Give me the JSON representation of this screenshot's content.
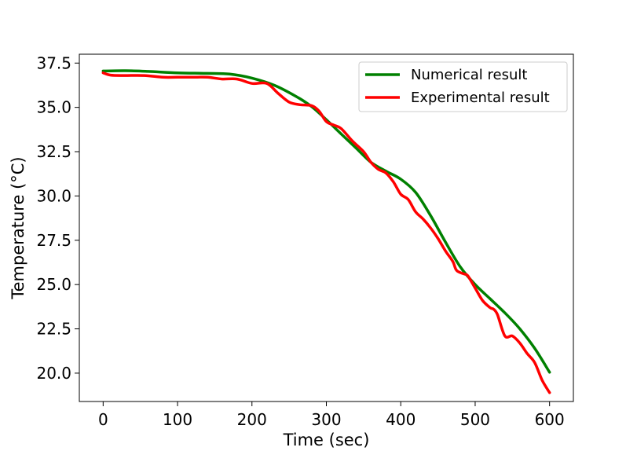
{
  "chart_data": {
    "type": "line",
    "title": "",
    "xlabel": "Time (sec)",
    "ylabel": "Temperature (°C)",
    "xlim": [
      -32,
      632
    ],
    "ylim": [
      18.4,
      38.0
    ],
    "xticks": [
      0,
      100,
      200,
      300,
      400,
      500,
      600
    ],
    "xtick_labels": [
      "0",
      "100",
      "200",
      "300",
      "400",
      "500",
      "600"
    ],
    "yticks": [
      20.0,
      22.5,
      25.0,
      27.5,
      30.0,
      32.5,
      35.0,
      37.5
    ],
    "ytick_labels": [
      "20.0",
      "22.5",
      "25.0",
      "27.5",
      "30.0",
      "32.5",
      "35.0",
      "37.5"
    ],
    "grid": false,
    "legend_position": "upper right",
    "series": [
      {
        "name": "Numerical result",
        "color": "#008000",
        "x": [
          0,
          30,
          60,
          100,
          140,
          170,
          200,
          230,
          260,
          280,
          300,
          320,
          340,
          360,
          380,
          400,
          420,
          440,
          460,
          480,
          500,
          520,
          540,
          560,
          580,
          600
        ],
        "y": [
          37.05,
          37.07,
          37.03,
          36.95,
          36.92,
          36.88,
          36.65,
          36.25,
          35.6,
          35.05,
          34.3,
          33.5,
          32.7,
          31.9,
          31.4,
          30.95,
          30.2,
          28.9,
          27.4,
          26.0,
          25.0,
          24.2,
          23.4,
          22.5,
          21.4,
          20.05
        ]
      },
      {
        "name": "Experimental result",
        "color": "#ff0000",
        "x": [
          0,
          10,
          30,
          55,
          80,
          100,
          120,
          140,
          160,
          180,
          200,
          220,
          235,
          250,
          265,
          280,
          290,
          300,
          310,
          320,
          335,
          350,
          360,
          370,
          380,
          390,
          400,
          410,
          420,
          430,
          440,
          450,
          460,
          470,
          475,
          485,
          490,
          500,
          510,
          520,
          525,
          530,
          540,
          550,
          560,
          570,
          580,
          590,
          600
        ],
        "y": [
          36.95,
          36.82,
          36.8,
          36.8,
          36.7,
          36.7,
          36.7,
          36.7,
          36.6,
          36.6,
          36.35,
          36.35,
          35.8,
          35.3,
          35.15,
          35.1,
          34.8,
          34.2,
          34.0,
          33.8,
          33.1,
          32.5,
          31.9,
          31.5,
          31.3,
          30.8,
          30.1,
          29.8,
          29.1,
          28.7,
          28.2,
          27.6,
          26.9,
          26.3,
          25.8,
          25.6,
          25.5,
          24.8,
          24.1,
          23.7,
          23.6,
          23.3,
          22.1,
          22.1,
          21.7,
          21.1,
          20.6,
          19.6,
          18.9
        ]
      }
    ]
  }
}
